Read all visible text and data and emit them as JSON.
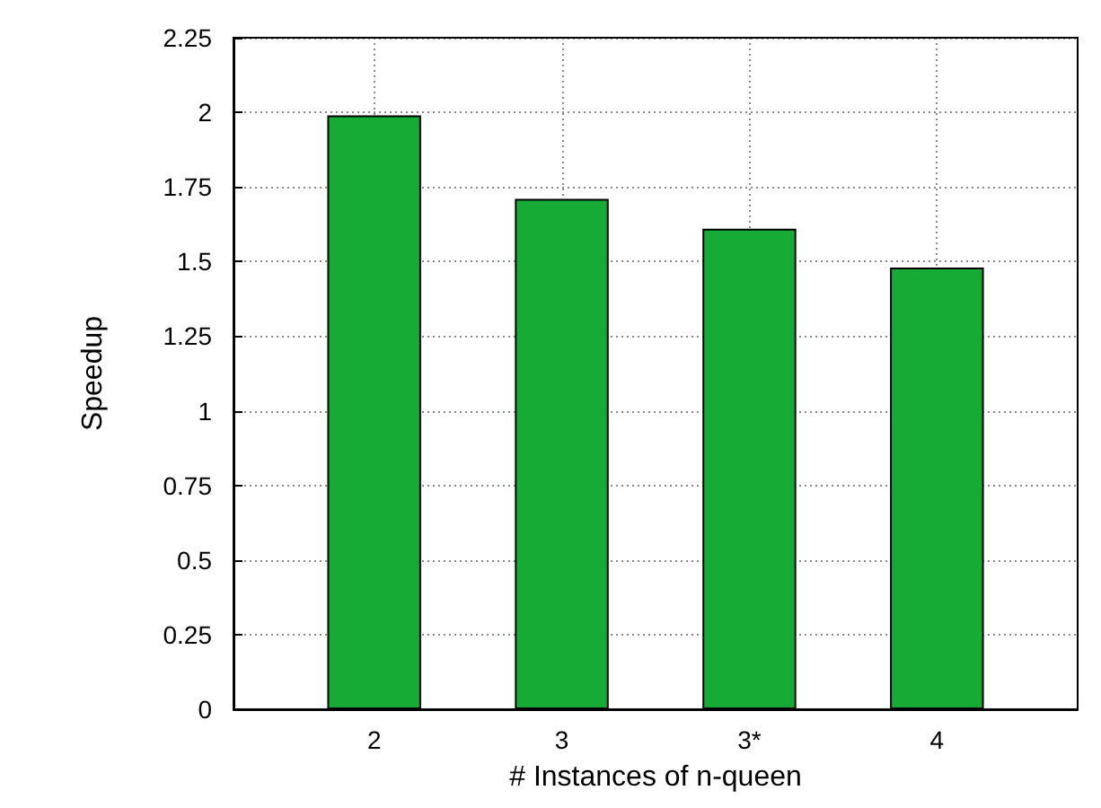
{
  "chart_data": {
    "type": "bar",
    "xlabel": "# Instances of n-queen",
    "ylabel": "Speedup",
    "categories": [
      "2",
      "3",
      "3*",
      "4"
    ],
    "values": [
      1.99,
      1.71,
      1.61,
      1.48
    ],
    "color": "#15ab34",
    "ylim": [
      0,
      2.25
    ],
    "yticks": [
      0,
      0.25,
      0.5,
      0.75,
      1,
      1.25,
      1.5,
      1.75,
      2,
      2.25
    ],
    "grid": true
  }
}
